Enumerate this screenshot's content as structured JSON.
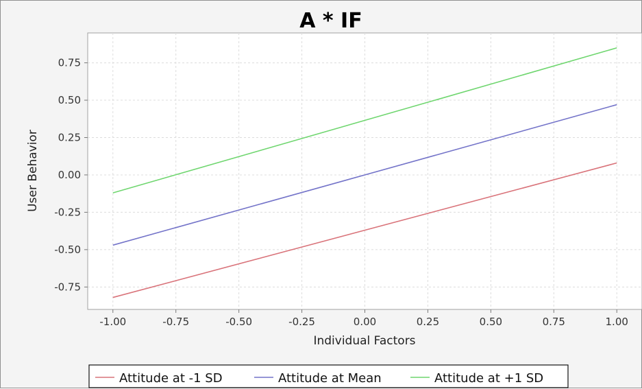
{
  "chart_data": {
    "type": "line",
    "title": "A * IF",
    "xlabel": "Individual Factors",
    "ylabel": "User Behavior",
    "xlim": [
      -1.1,
      1.1
    ],
    "ylim": [
      -0.9,
      0.95
    ],
    "x_ticks": [
      -1.0,
      -0.75,
      -0.5,
      -0.25,
      0.0,
      0.25,
      0.5,
      0.75,
      1.0
    ],
    "x_tick_labels": [
      "-1.00",
      "-0.75",
      "-0.50",
      "-0.25",
      "0.00",
      "0.25",
      "0.50",
      "0.75",
      "1.00"
    ],
    "y_ticks": [
      0.75,
      0.5,
      0.25,
      0.0,
      -0.25,
      -0.5,
      -0.75
    ],
    "y_tick_labels": [
      "0.75",
      "0.50",
      "0.25",
      "0.00",
      "-0.25",
      "-0.50",
      "-0.75"
    ],
    "grid": true,
    "legend_position": "bottom",
    "series": [
      {
        "name": "Attitude at -1 SD",
        "color": "#d9737a",
        "x": [
          -1.0,
          1.0
        ],
        "y": [
          -0.82,
          0.08
        ]
      },
      {
        "name": "Attitude at Mean",
        "color": "#7474c9",
        "x": [
          -1.0,
          1.0
        ],
        "y": [
          -0.47,
          0.47
        ]
      },
      {
        "name": "Attitude at +1 SD",
        "color": "#6fd66f",
        "x": [
          -1.0,
          1.0
        ],
        "y": [
          -0.12,
          0.85
        ]
      }
    ]
  }
}
